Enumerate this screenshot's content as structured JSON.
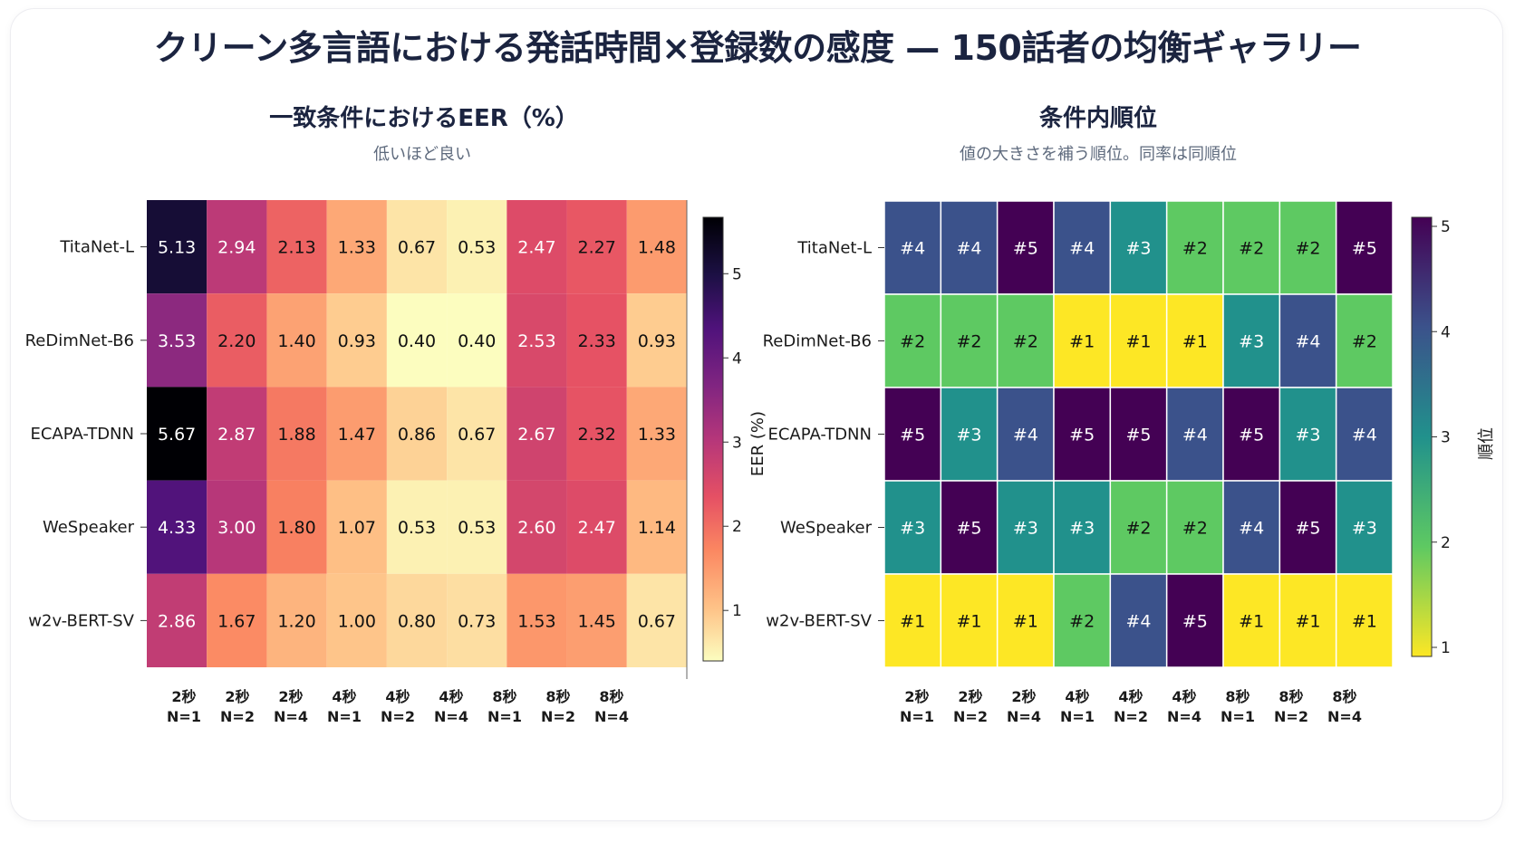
{
  "title": "クリーン多言語における発話時間×登録数の感度 — 150話者の均衡ギャラリー",
  "chart_data": [
    {
      "type": "heatmap",
      "title": "一致条件におけるEER（%）",
      "subtitle": "低いほど良い",
      "rows": [
        "TitaNet-L",
        "ReDimNet-B6",
        "ECAPA-TDNN",
        "WeSpeaker",
        "w2v-BERT-SV"
      ],
      "columns": [
        {
          "line1": "2秒",
          "line2": "N=1"
        },
        {
          "line1": "2秒",
          "line2": "N=2"
        },
        {
          "line1": "2秒",
          "line2": "N=4"
        },
        {
          "line1": "4秒",
          "line2": "N=1"
        },
        {
          "line1": "4秒",
          "line2": "N=2"
        },
        {
          "line1": "4秒",
          "line2": "N=4"
        },
        {
          "line1": "8秒",
          "line2": "N=1"
        },
        {
          "line1": "8秒",
          "line2": "N=2"
        },
        {
          "line1": "8秒",
          "line2": "N=4"
        }
      ],
      "values": [
        [
          5.13,
          2.94,
          2.13,
          1.33,
          0.67,
          0.53,
          2.47,
          2.27,
          1.48
        ],
        [
          3.53,
          2.2,
          1.4,
          0.93,
          0.4,
          0.4,
          2.53,
          2.33,
          0.93
        ],
        [
          5.67,
          2.87,
          1.88,
          1.47,
          0.86,
          0.67,
          2.67,
          2.32,
          1.33
        ],
        [
          4.33,
          3.0,
          1.8,
          1.07,
          0.53,
          0.53,
          2.6,
          2.47,
          1.14
        ],
        [
          2.86,
          1.67,
          1.2,
          1.0,
          0.8,
          0.73,
          1.53,
          1.45,
          0.67
        ]
      ],
      "colormap": "magma_r",
      "colorbar": {
        "label": "EER (%)",
        "ticks": [
          "1",
          "2",
          "3",
          "4",
          "5"
        ],
        "range": [
          0.4,
          5.67
        ]
      }
    },
    {
      "type": "heatmap",
      "title": "条件内順位",
      "subtitle": "値の大きさを補う順位。同率は同順位",
      "rows": [
        "TitaNet-L",
        "ReDimNet-B6",
        "ECAPA-TDNN",
        "WeSpeaker",
        "w2v-BERT-SV"
      ],
      "columns": [
        {
          "line1": "2秒",
          "line2": "N=1"
        },
        {
          "line1": "2秒",
          "line2": "N=2"
        },
        {
          "line1": "2秒",
          "line2": "N=4"
        },
        {
          "line1": "4秒",
          "line2": "N=1"
        },
        {
          "line1": "4秒",
          "line2": "N=2"
        },
        {
          "line1": "4秒",
          "line2": "N=4"
        },
        {
          "line1": "8秒",
          "line2": "N=1"
        },
        {
          "line1": "8秒",
          "line2": "N=2"
        },
        {
          "line1": "8秒",
          "line2": "N=4"
        }
      ],
      "values": [
        [
          4,
          4,
          5,
          4,
          3,
          2,
          2,
          2,
          5
        ],
        [
          2,
          2,
          2,
          1,
          1,
          1,
          3,
          4,
          2
        ],
        [
          5,
          3,
          4,
          5,
          5,
          4,
          5,
          3,
          4
        ],
        [
          3,
          5,
          3,
          3,
          2,
          2,
          4,
          5,
          3
        ],
        [
          1,
          1,
          1,
          2,
          4,
          5,
          1,
          1,
          1
        ]
      ],
      "cell_prefix": "#",
      "colormap": "viridis_r",
      "colorbar": {
        "label": "順位",
        "ticks": [
          "1",
          "2",
          "3",
          "4",
          "5"
        ],
        "range": [
          1,
          5
        ]
      }
    }
  ]
}
